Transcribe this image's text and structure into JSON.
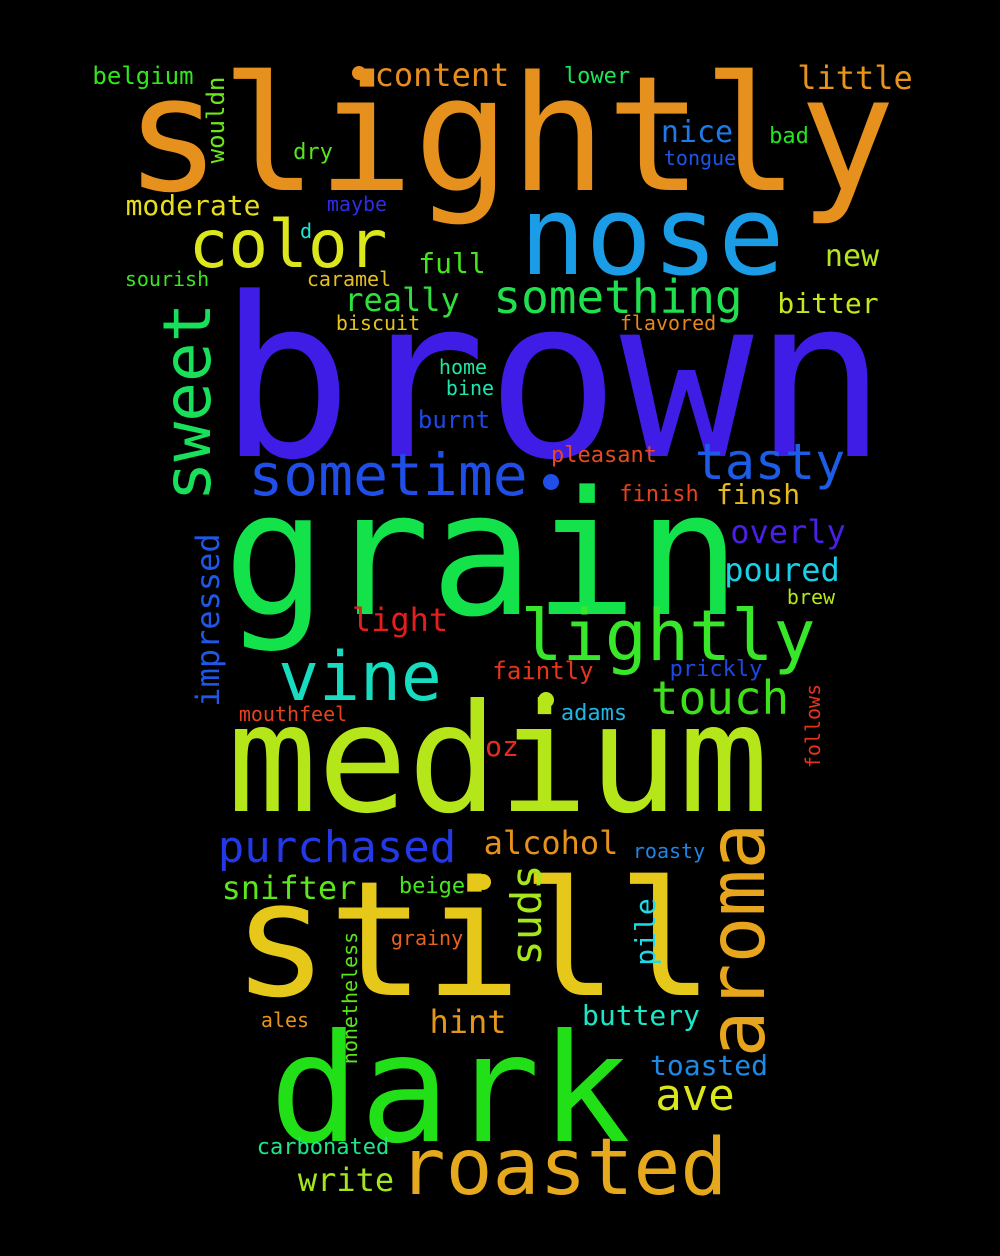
{
  "background": "#000000",
  "words": [
    {
      "text": "brown",
      "color": "#3f1de6"
    },
    {
      "text": "slightly",
      "color": "#e6911d"
    },
    {
      "text": "grain",
      "color": "#13e24b"
    },
    {
      "text": "medium",
      "color": "#b4e61a"
    },
    {
      "text": "still",
      "color": "#e6c81b"
    },
    {
      "text": "dark",
      "color": "#22e017"
    },
    {
      "text": "nose",
      "color": "#1a9ce6"
    },
    {
      "text": "roasted",
      "color": "#e6a91d"
    },
    {
      "text": "aroma",
      "color": "#e6a51c"
    },
    {
      "text": "color",
      "color": "#dce61d"
    },
    {
      "text": "sweet",
      "color": "#19e05a"
    },
    {
      "text": "sometime",
      "color": "#1f4fe6"
    },
    {
      "text": "lightly",
      "color": "#38e62a"
    },
    {
      "text": "vine",
      "color": "#17dcc0"
    },
    {
      "text": "tasty",
      "color": "#1d5ce6"
    },
    {
      "text": "something",
      "color": "#20e04f"
    },
    {
      "text": "purchased",
      "color": "#2338e6"
    },
    {
      "text": "touch",
      "color": "#3ee01c"
    },
    {
      "text": "suds",
      "color": "#a6e61c"
    },
    {
      "text": "ave",
      "color": "#d9e61c"
    },
    {
      "text": "content",
      "color": "#e68d1d"
    },
    {
      "text": "little",
      "color": "#e6941d"
    },
    {
      "text": "really",
      "color": "#31e03d"
    },
    {
      "text": "alcohol",
      "color": "#e6911d"
    },
    {
      "text": "overly",
      "color": "#4a1fe6"
    },
    {
      "text": "poured",
      "color": "#1ad0e6"
    },
    {
      "text": "impressed",
      "color": "#1f57e6"
    },
    {
      "text": "light",
      "color": "#e61d1d"
    },
    {
      "text": "snifter",
      "color": "#5ce61c"
    },
    {
      "text": "hint",
      "color": "#e6961d"
    },
    {
      "text": "buttery",
      "color": "#1de6c6"
    },
    {
      "text": "toasted",
      "color": "#1d8ae6"
    },
    {
      "text": "write",
      "color": "#a3e61d"
    },
    {
      "text": "pile",
      "color": "#1ddae6"
    },
    {
      "text": "nice",
      "color": "#1d7ae6"
    },
    {
      "text": "moderate",
      "color": "#e6de1d"
    },
    {
      "text": "full",
      "color": "#43e61d"
    },
    {
      "text": "bitter",
      "color": "#c6e61d"
    },
    {
      "text": "new",
      "color": "#b6e61d"
    },
    {
      "text": "finsh",
      "color": "#e6b91d"
    },
    {
      "text": "belgium",
      "color": "#31e61d"
    },
    {
      "text": "wouldn",
      "color": "#6de61d"
    },
    {
      "text": "lower",
      "color": "#1de65a"
    },
    {
      "text": "bad",
      "color": "#23e61d"
    },
    {
      "text": "tongue",
      "color": "#1d55e6"
    },
    {
      "text": "dry",
      "color": "#57e61d"
    },
    {
      "text": "maybe",
      "color": "#2d2de6"
    },
    {
      "text": "d",
      "color": "#1de6d3"
    },
    {
      "text": "sourish",
      "color": "#3ae61d"
    },
    {
      "text": "caramel",
      "color": "#e6bf1d"
    },
    {
      "text": "biscuit",
      "color": "#e6c41d"
    },
    {
      "text": "flavored",
      "color": "#e6861d"
    },
    {
      "text": "home",
      "color": "#1de6a0"
    },
    {
      "text": "bine",
      "color": "#1de6b0"
    },
    {
      "text": "burnt",
      "color": "#1d48e6"
    },
    {
      "text": "pleasant",
      "color": "#e64a1d"
    },
    {
      "text": "finish",
      "color": "#e6421d"
    },
    {
      "text": "brew",
      "color": "#b5e61d"
    },
    {
      "text": "faintly",
      "color": "#e6351d"
    },
    {
      "text": "prickly",
      "color": "#1d48e6"
    },
    {
      "text": "mouthfeel",
      "color": "#e6421d"
    },
    {
      "text": "adams",
      "color": "#1db6e6"
    },
    {
      "text": "oz",
      "color": "#e62d1d"
    },
    {
      "text": "follows",
      "color": "#e6321d"
    },
    {
      "text": "roasty",
      "color": "#1d86e6"
    },
    {
      "text": "beige",
      "color": "#45e61d"
    },
    {
      "text": "nonetheless",
      "color": "#5ae61d"
    },
    {
      "text": "grainy",
      "color": "#e6621d"
    },
    {
      "text": "ales",
      "color": "#e6941d"
    },
    {
      "text": "carbonated",
      "color": "#1de68a"
    }
  ]
}
